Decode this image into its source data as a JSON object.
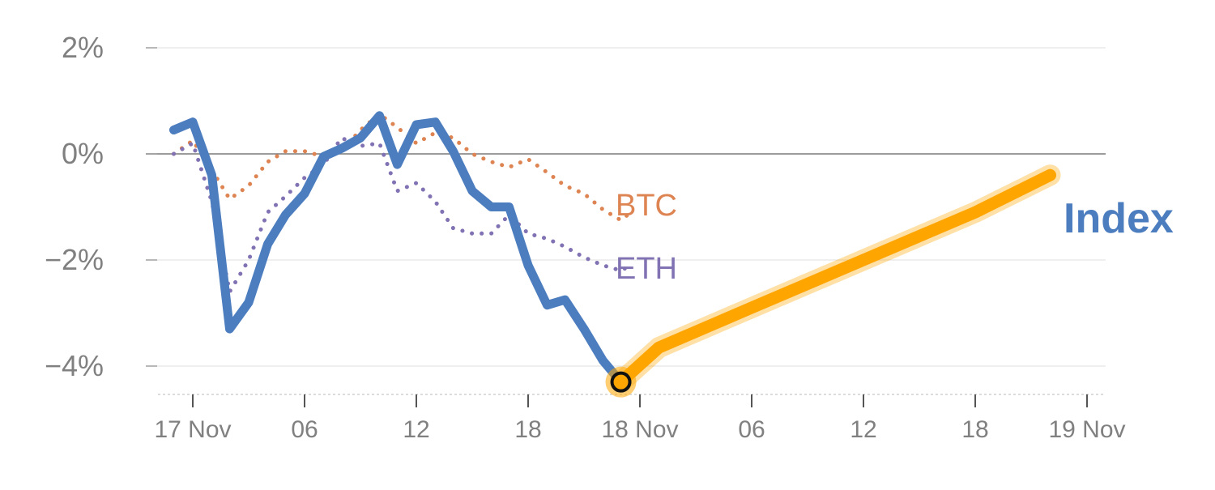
{
  "chart_data": {
    "type": "line",
    "title": "",
    "xlabel": "",
    "ylabel": "",
    "ylim": [
      -4.5,
      2.2
    ],
    "xlim": [
      -0.33,
      7.88
    ],
    "yticks": [
      {
        "value": 2,
        "label": "2%"
      },
      {
        "value": 0,
        "label": "0%"
      },
      {
        "value": -2,
        "label": "−2%"
      },
      {
        "value": -4,
        "label": "−4%"
      }
    ],
    "xticks": [
      {
        "value": 0,
        "label": "17 Nov"
      },
      {
        "value": 1,
        "label": "06"
      },
      {
        "value": 2,
        "label": "12"
      },
      {
        "value": 3,
        "label": "18"
      },
      {
        "value": 4,
        "label": "18 Nov"
      },
      {
        "value": 5,
        "label": "06"
      },
      {
        "value": 6,
        "label": "12"
      },
      {
        "value": 7,
        "label": "18"
      },
      {
        "value": 8,
        "label": "19 Nov"
      }
    ],
    "x_unit_note_hidden": "",
    "series": [
      {
        "name": "BTC",
        "color": "#dd8452",
        "style": "dotted",
        "points": [
          [
            -0.17,
            0.0
          ],
          [
            0.0,
            0.25
          ],
          [
            0.17,
            -0.3
          ],
          [
            0.33,
            -0.85
          ],
          [
            0.5,
            -0.6
          ],
          [
            0.67,
            -0.15
          ],
          [
            0.83,
            0.05
          ],
          [
            1.0,
            0.05
          ],
          [
            1.17,
            -0.05
          ],
          [
            1.33,
            0.05
          ],
          [
            1.5,
            0.45
          ],
          [
            1.67,
            0.75
          ],
          [
            1.83,
            0.5
          ],
          [
            2.0,
            0.2
          ],
          [
            2.17,
            0.4
          ],
          [
            2.33,
            0.3
          ],
          [
            2.5,
            0.0
          ],
          [
            2.67,
            -0.15
          ],
          [
            2.83,
            -0.25
          ],
          [
            3.0,
            -0.1
          ],
          [
            3.17,
            -0.35
          ],
          [
            3.33,
            -0.6
          ],
          [
            3.5,
            -0.75
          ],
          [
            3.67,
            -1.05
          ],
          [
            3.83,
            -1.25
          ],
          [
            3.92,
            -1.1
          ]
        ]
      },
      {
        "name": "ETH",
        "color": "#8172b3",
        "style": "dotted",
        "points": [
          [
            -0.17,
            0.0
          ],
          [
            0.0,
            0.2
          ],
          [
            0.17,
            -0.9
          ],
          [
            0.33,
            -2.6
          ],
          [
            0.5,
            -2.0
          ],
          [
            0.67,
            -1.1
          ],
          [
            0.83,
            -0.8
          ],
          [
            1.0,
            -0.45
          ],
          [
            1.17,
            -0.2
          ],
          [
            1.33,
            0.3
          ],
          [
            1.5,
            0.15
          ],
          [
            1.67,
            0.2
          ],
          [
            1.83,
            -0.7
          ],
          [
            2.0,
            -0.55
          ],
          [
            2.17,
            -0.9
          ],
          [
            2.33,
            -1.4
          ],
          [
            2.5,
            -1.5
          ],
          [
            2.67,
            -1.5
          ],
          [
            2.83,
            -1.15
          ],
          [
            3.0,
            -1.5
          ],
          [
            3.17,
            -1.6
          ],
          [
            3.33,
            -1.75
          ],
          [
            3.5,
            -1.95
          ],
          [
            3.67,
            -2.1
          ],
          [
            3.83,
            -2.2
          ],
          [
            3.92,
            -2.1
          ]
        ]
      },
      {
        "name": "Index",
        "color": "#4c7dbf",
        "style": "solid",
        "points": [
          [
            -0.17,
            0.45
          ],
          [
            0.0,
            0.6
          ],
          [
            0.17,
            -0.4
          ],
          [
            0.33,
            -3.3
          ],
          [
            0.5,
            -2.8
          ],
          [
            0.67,
            -1.7
          ],
          [
            0.83,
            -1.15
          ],
          [
            1.0,
            -0.75
          ],
          [
            1.17,
            -0.05
          ],
          [
            1.33,
            0.1
          ],
          [
            1.5,
            0.3
          ],
          [
            1.67,
            0.72
          ],
          [
            1.83,
            -0.2
          ],
          [
            2.0,
            0.55
          ],
          [
            2.17,
            0.6
          ],
          [
            2.33,
            0.05
          ],
          [
            2.5,
            -0.7
          ],
          [
            2.67,
            -1.0
          ],
          [
            2.83,
            -1.0
          ],
          [
            3.0,
            -2.1
          ],
          [
            3.17,
            -2.85
          ],
          [
            3.33,
            -2.75
          ],
          [
            3.5,
            -3.3
          ],
          [
            3.67,
            -3.9
          ],
          [
            3.83,
            -4.3
          ]
        ]
      },
      {
        "name": "Index",
        "color": "#ffa500",
        "style": "highlight",
        "points": [
          [
            3.83,
            -4.3
          ],
          [
            4.17,
            -3.65
          ],
          [
            5.0,
            -2.9
          ],
          [
            6.0,
            -2.0
          ],
          [
            7.0,
            -1.1
          ],
          [
            7.67,
            -0.4
          ]
        ]
      }
    ],
    "marker": {
      "x": 3.83,
      "y": -4.3
    },
    "labels": [
      {
        "text": "BTC",
        "color": "#dd8452"
      },
      {
        "text": "ETH",
        "color": "#8172b3"
      },
      {
        "text": "Index",
        "color": "#4c7dbf"
      }
    ]
  }
}
